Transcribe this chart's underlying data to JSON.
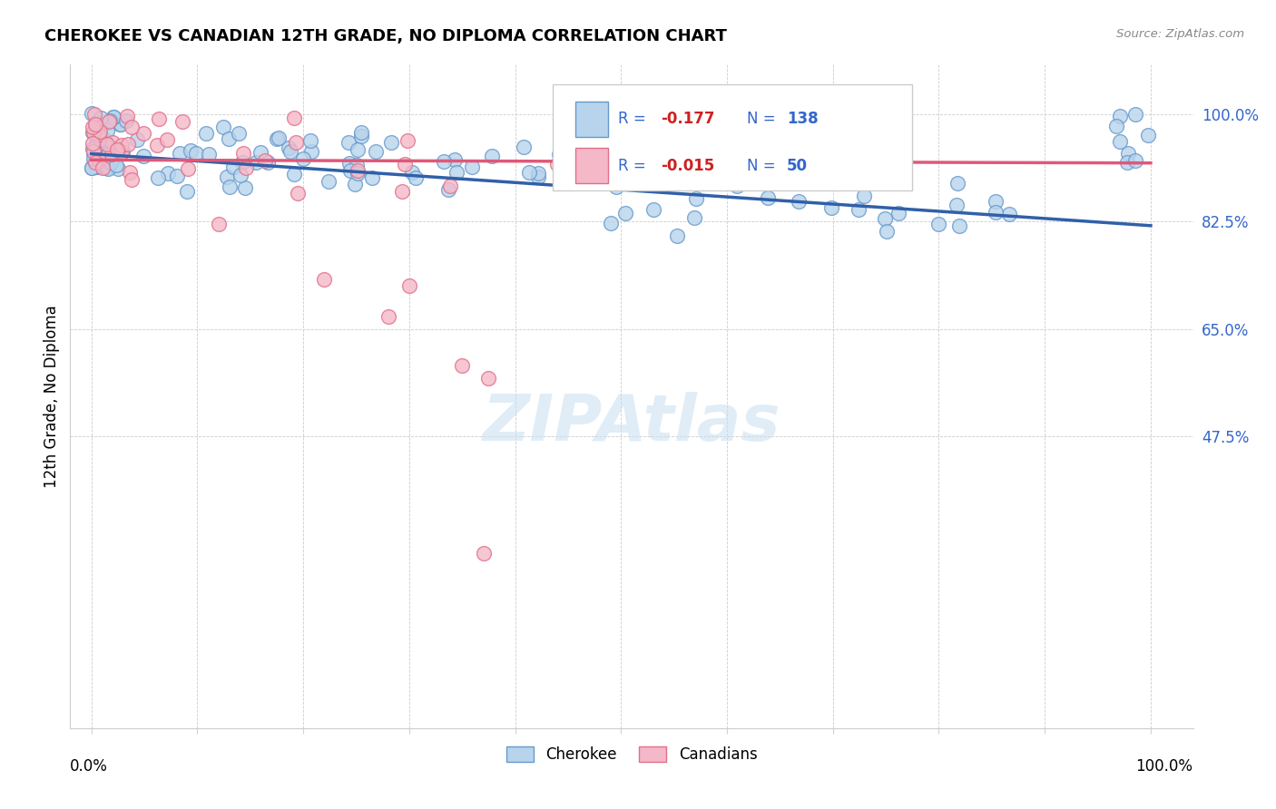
{
  "title": "CHEROKEE VS CANADIAN 12TH GRADE, NO DIPLOMA CORRELATION CHART",
  "source": "Source: ZipAtlas.com",
  "ylabel": "12th Grade, No Diploma",
  "legend_label1": "Cherokee",
  "legend_label2": "Canadians",
  "color_blue_fill": "#b8d4ec",
  "color_blue_edge": "#6699cc",
  "color_pink_fill": "#f4b8c8",
  "color_pink_edge": "#e0708a",
  "line_blue": "#3060a8",
  "line_pink": "#e05878",
  "yticks": [
    0.475,
    0.65,
    0.825,
    1.0
  ],
  "ytick_labels": [
    "47.5%",
    "65.0%",
    "82.5%",
    "100.0%"
  ],
  "xlim": [
    -0.02,
    1.04
  ],
  "ylim": [
    0.0,
    1.08
  ],
  "R_blue": -0.177,
  "R_pink": -0.015,
  "N_blue": 138,
  "N_pink": 50,
  "line_blue_y0": 0.935,
  "line_blue_y1": 0.818,
  "line_pink_y0": 0.925,
  "line_pink_y1": 0.92
}
